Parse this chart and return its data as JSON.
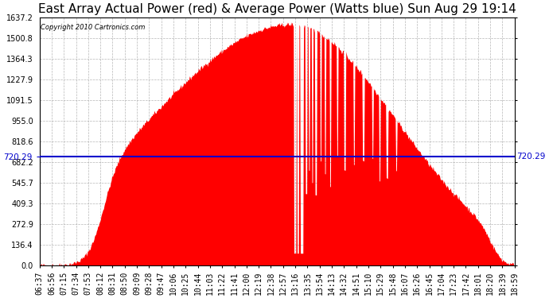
{
  "title": "East Array Actual Power (red) & Average Power (Watts blue) Sun Aug 29 19:14",
  "copyright": "Copyright 2010 Cartronics.com",
  "avg_power": 720.29,
  "y_max": 1637.2,
  "y_min": 0.0,
  "y_ticks": [
    0.0,
    136.4,
    272.9,
    409.3,
    545.7,
    682.2,
    818.6,
    955.0,
    1091.5,
    1227.9,
    1364.3,
    1500.8,
    1637.2
  ],
  "background_color": "#ffffff",
  "fill_color": "#ff0000",
  "line_color": "#0000cc",
  "grid_color": "#aaaaaa",
  "x_labels": [
    "06:37",
    "06:56",
    "07:15",
    "07:34",
    "07:53",
    "08:12",
    "08:31",
    "08:50",
    "09:09",
    "09:28",
    "09:47",
    "10:06",
    "10:25",
    "10:44",
    "11:03",
    "11:22",
    "11:41",
    "12:00",
    "12:19",
    "12:38",
    "12:57",
    "13:16",
    "13:35",
    "13:54",
    "14:13",
    "14:32",
    "14:51",
    "15:10",
    "15:29",
    "15:48",
    "16:07",
    "16:26",
    "16:45",
    "17:04",
    "17:23",
    "17:42",
    "18:01",
    "18:20",
    "18:39",
    "18:59"
  ],
  "title_fontsize": 11,
  "tick_fontsize": 7.0,
  "avg_label_fontsize": 7.5
}
